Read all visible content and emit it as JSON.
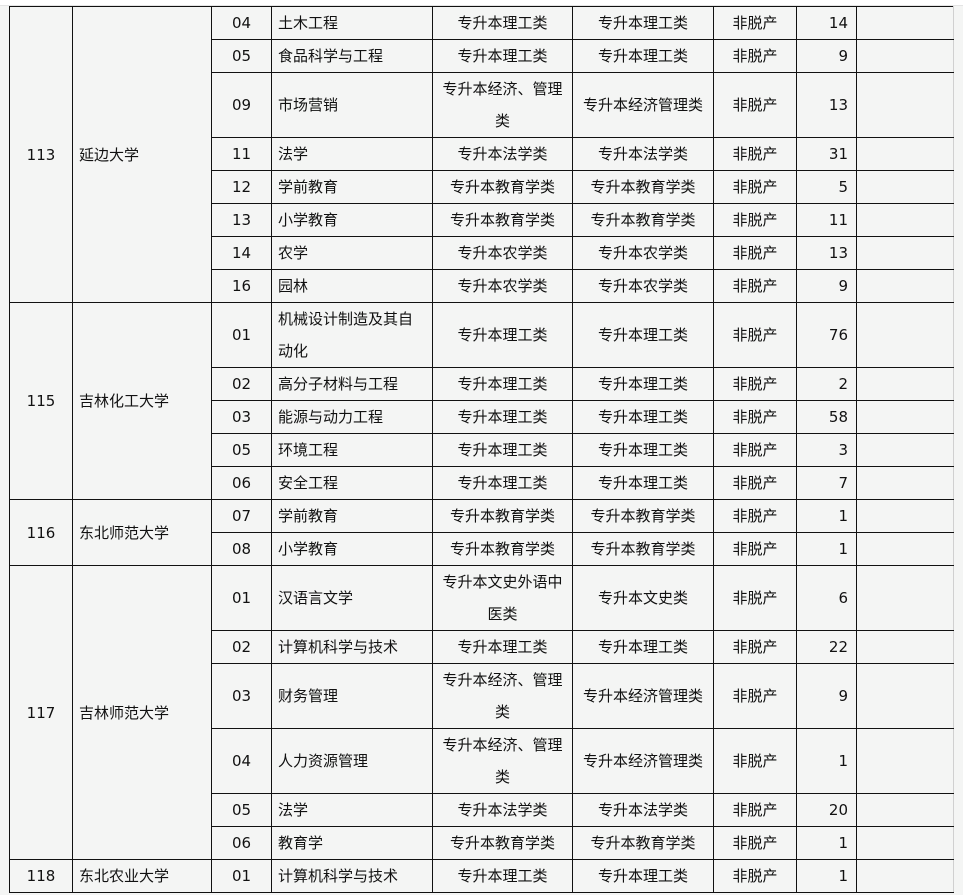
{
  "groups": [
    {
      "id": "113",
      "school": "延边大学",
      "rows": [
        {
          "code": "04",
          "major": "土木工程",
          "plan_cat": "专升本理工类",
          "exam_cat": "专升本理工类",
          "mode": "非脱产",
          "count": "14"
        },
        {
          "code": "05",
          "major": "食品科学与工程",
          "plan_cat": "专升本理工类",
          "exam_cat": "专升本理工类",
          "mode": "非脱产",
          "count": "9"
        },
        {
          "code": "09",
          "major": "市场营销",
          "plan_cat": "专升本经济、管理类",
          "exam_cat": "专升本经济管理类",
          "mode": "非脱产",
          "count": "13",
          "double": true
        },
        {
          "code": "11",
          "major": "法学",
          "plan_cat": "专升本法学类",
          "exam_cat": "专升本法学类",
          "mode": "非脱产",
          "count": "31"
        },
        {
          "code": "12",
          "major": "学前教育",
          "plan_cat": "专升本教育学类",
          "exam_cat": "专升本教育学类",
          "mode": "非脱产",
          "count": "5"
        },
        {
          "code": "13",
          "major": "小学教育",
          "plan_cat": "专升本教育学类",
          "exam_cat": "专升本教育学类",
          "mode": "非脱产",
          "count": "11"
        },
        {
          "code": "14",
          "major": "农学",
          "plan_cat": "专升本农学类",
          "exam_cat": "专升本农学类",
          "mode": "非脱产",
          "count": "13"
        },
        {
          "code": "16",
          "major": "园林",
          "plan_cat": "专升本农学类",
          "exam_cat": "专升本农学类",
          "mode": "非脱产",
          "count": "9"
        }
      ]
    },
    {
      "id": "115",
      "school": "吉林化工大学",
      "rows": [
        {
          "code": "01",
          "major": "机械设计制造及其自动化",
          "plan_cat": "专升本理工类",
          "exam_cat": "专升本理工类",
          "mode": "非脱产",
          "count": "76",
          "double": true
        },
        {
          "code": "02",
          "major": "高分子材料与工程",
          "plan_cat": "专升本理工类",
          "exam_cat": "专升本理工类",
          "mode": "非脱产",
          "count": "2"
        },
        {
          "code": "03",
          "major": "能源与动力工程",
          "plan_cat": "专升本理工类",
          "exam_cat": "专升本理工类",
          "mode": "非脱产",
          "count": "58"
        },
        {
          "code": "05",
          "major": "环境工程",
          "plan_cat": "专升本理工类",
          "exam_cat": "专升本理工类",
          "mode": "非脱产",
          "count": "3"
        },
        {
          "code": "06",
          "major": "安全工程",
          "plan_cat": "专升本理工类",
          "exam_cat": "专升本理工类",
          "mode": "非脱产",
          "count": "7"
        }
      ]
    },
    {
      "id": "116",
      "school": "东北师范大学",
      "rows": [
        {
          "code": "07",
          "major": "学前教育",
          "plan_cat": "专升本教育学类",
          "exam_cat": "专升本教育学类",
          "mode": "非脱产",
          "count": "1"
        },
        {
          "code": "08",
          "major": "小学教育",
          "plan_cat": "专升本教育学类",
          "exam_cat": "专升本教育学类",
          "mode": "非脱产",
          "count": "1"
        }
      ]
    },
    {
      "id": "117",
      "school": "吉林师范大学",
      "rows": [
        {
          "code": "01",
          "major": "汉语言文学",
          "plan_cat": "专升本文史外语中医类",
          "exam_cat": "专升本文史类",
          "mode": "非脱产",
          "count": "6",
          "double": true
        },
        {
          "code": "02",
          "major": "计算机科学与技术",
          "plan_cat": "专升本理工类",
          "exam_cat": "专升本理工类",
          "mode": "非脱产",
          "count": "22"
        },
        {
          "code": "03",
          "major": "财务管理",
          "plan_cat": "专升本经济、管理类",
          "exam_cat": "专升本经济管理类",
          "mode": "非脱产",
          "count": "9",
          "double": true
        },
        {
          "code": "04",
          "major": "人力资源管理",
          "plan_cat": "专升本经济、管理类",
          "exam_cat": "专升本经济管理类",
          "mode": "非脱产",
          "count": "1",
          "double": true
        },
        {
          "code": "05",
          "major": "法学",
          "plan_cat": "专升本法学类",
          "exam_cat": "专升本法学类",
          "mode": "非脱产",
          "count": "20"
        },
        {
          "code": "06",
          "major": "教育学",
          "plan_cat": "专升本教育学类",
          "exam_cat": "专升本教育学类",
          "mode": "非脱产",
          "count": "1"
        }
      ]
    },
    {
      "id": "118",
      "school": "东北农业大学",
      "rows": [
        {
          "code": "01",
          "major": "计算机科学与技术",
          "plan_cat": "专升本理工类",
          "exam_cat": "专升本理工类",
          "mode": "非脱产",
          "count": "1"
        }
      ]
    }
  ]
}
